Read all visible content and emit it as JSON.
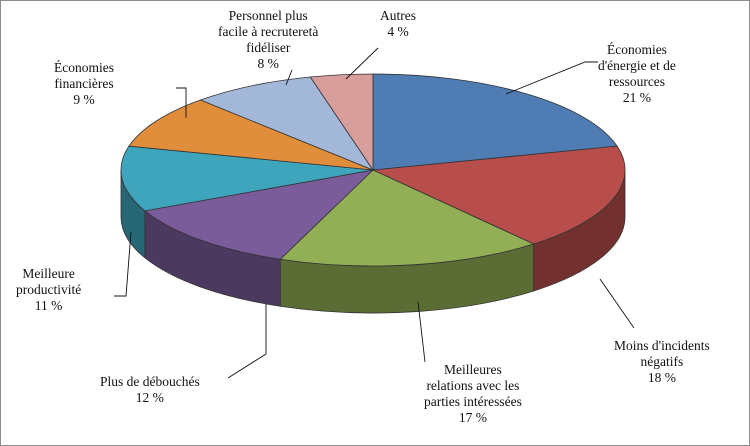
{
  "chart_data": {
    "type": "pie",
    "style": "3d",
    "slices": [
      {
        "label": "Économies d'énergie et de ressources",
        "value": 21,
        "color": "#4f7cb3"
      },
      {
        "label": "Moins d'incidents négatifs",
        "value": 18,
        "color": "#b84e4c"
      },
      {
        "label": "Meilleures relations avec les parties intéressées",
        "value": 17,
        "color": "#92af55"
      },
      {
        "label": "Plus de débouchés",
        "value": 12,
        "color": "#7a5c9a"
      },
      {
        "label": "Meilleure productivité",
        "value": 11,
        "color": "#3ea5bc"
      },
      {
        "label": "Économies financières",
        "value": 9,
        "color": "#e08d3c"
      },
      {
        "label": "Personnel plus facile à recruteretà fidéliser",
        "value": 8,
        "color": "#a3b8d8"
      },
      {
        "label": "Autres",
        "value": 4,
        "color": "#d79e9c"
      }
    ]
  },
  "labels": [
    {
      "name": "Économies\nd'énergie et de\nressources",
      "pct": "21 %"
    },
    {
      "name": "Moins d'incidents\nnégatifs",
      "pct": "18 %"
    },
    {
      "name": "Meilleures\nrelations avec les\nparties intéressées",
      "pct": "17 %"
    },
    {
      "name": "Plus de débouchés",
      "pct": "12 %"
    },
    {
      "name": "Meilleure\nproductivité",
      "pct": "11 %"
    },
    {
      "name": "Économies\nfinancières",
      "pct": "9 %"
    },
    {
      "name": "Personnel plus\nfacile à recruteretà\nfidéliser",
      "pct": "8 %"
    },
    {
      "name": "Autres",
      "pct": "4 %"
    }
  ]
}
